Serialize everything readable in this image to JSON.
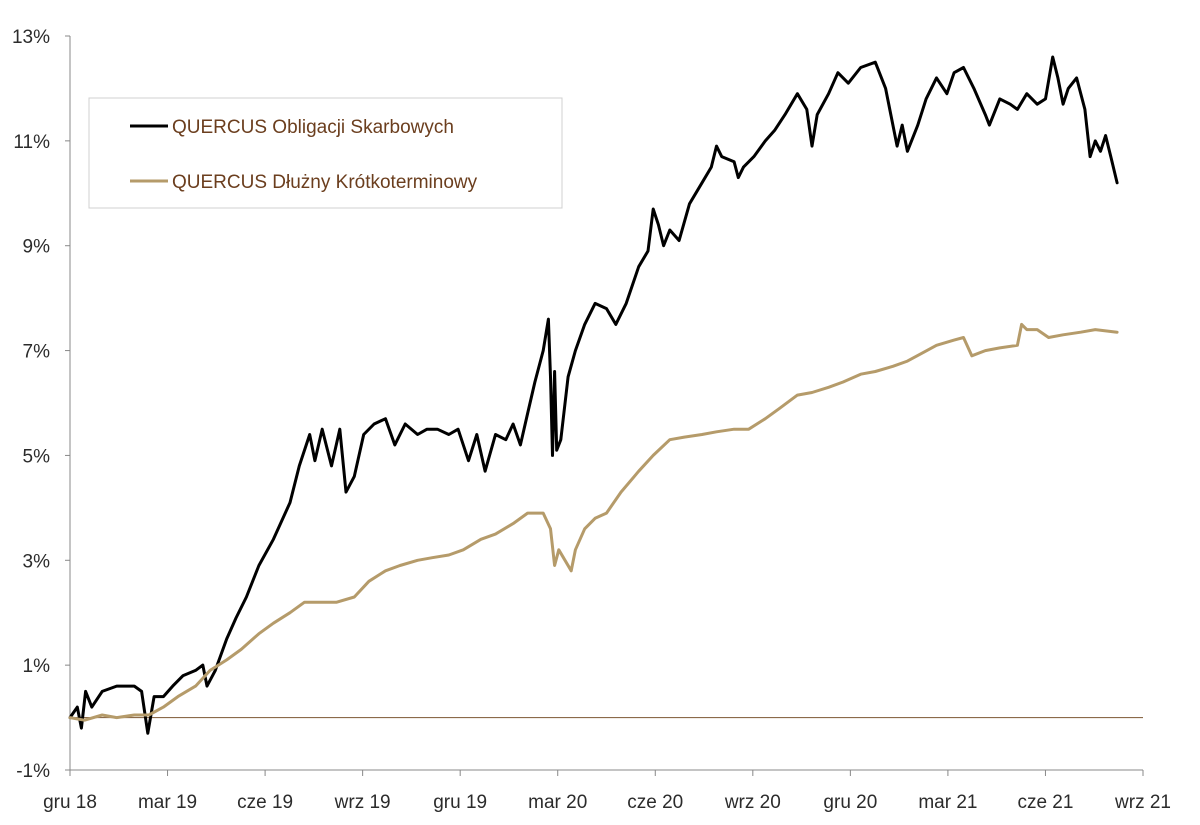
{
  "chart_data": {
    "type": "line",
    "title": "",
    "xlabel": "",
    "ylabel": "",
    "ylim": [
      -1,
      13
    ],
    "y_ticks": [
      -1,
      1,
      3,
      5,
      7,
      9,
      11,
      13
    ],
    "y_tick_labels": [
      "-1%",
      "1%",
      "3%",
      "5%",
      "7%",
      "9%",
      "11%",
      "13%"
    ],
    "x_ticks": [
      "gru 18",
      "mar 19",
      "cze 19",
      "wrz 19",
      "gru 19",
      "mar 20",
      "cze 20",
      "wrz 20",
      "gru 20",
      "mar 21",
      "cze 21",
      "wrz 21"
    ],
    "x_range": [
      "2018-12-01",
      "2021-09-30"
    ],
    "grid": false,
    "zero_line": true,
    "legend_position": "top-left",
    "series": [
      {
        "name": "QUERCUS Obligacji Skarbowych",
        "color": "#000000",
        "points": [
          [
            "2018-12-01",
            0.0
          ],
          [
            "2018-12-08",
            0.2
          ],
          [
            "2018-12-12",
            -0.2
          ],
          [
            "2018-12-16",
            0.5
          ],
          [
            "2018-12-22",
            0.2
          ],
          [
            "2019-01-01",
            0.5
          ],
          [
            "2019-01-15",
            0.6
          ],
          [
            "2019-02-01",
            0.6
          ],
          [
            "2019-02-08",
            0.5
          ],
          [
            "2019-02-14",
            -0.3
          ],
          [
            "2019-02-20",
            0.4
          ],
          [
            "2019-03-01",
            0.4
          ],
          [
            "2019-03-10",
            0.6
          ],
          [
            "2019-03-20",
            0.8
          ],
          [
            "2019-04-01",
            0.9
          ],
          [
            "2019-04-08",
            1.0
          ],
          [
            "2019-04-12",
            0.6
          ],
          [
            "2019-04-20",
            0.9
          ],
          [
            "2019-05-01",
            1.5
          ],
          [
            "2019-05-10",
            1.9
          ],
          [
            "2019-05-20",
            2.3
          ],
          [
            "2019-06-01",
            2.9
          ],
          [
            "2019-06-15",
            3.4
          ],
          [
            "2019-07-01",
            4.1
          ],
          [
            "2019-07-10",
            4.8
          ],
          [
            "2019-07-20",
            5.4
          ],
          [
            "2019-07-25",
            4.9
          ],
          [
            "2019-08-01",
            5.5
          ],
          [
            "2019-08-10",
            4.8
          ],
          [
            "2019-08-18",
            5.5
          ],
          [
            "2019-08-24",
            4.3
          ],
          [
            "2019-09-01",
            4.6
          ],
          [
            "2019-09-10",
            5.4
          ],
          [
            "2019-09-20",
            5.6
          ],
          [
            "2019-10-01",
            5.7
          ],
          [
            "2019-10-10",
            5.2
          ],
          [
            "2019-10-20",
            5.6
          ],
          [
            "2019-11-01",
            5.4
          ],
          [
            "2019-11-10",
            5.5
          ],
          [
            "2019-11-20",
            5.5
          ],
          [
            "2019-12-01",
            5.4
          ],
          [
            "2019-12-10",
            5.5
          ],
          [
            "2019-12-20",
            4.9
          ],
          [
            "2019-12-28",
            5.4
          ],
          [
            "2020-01-05",
            4.7
          ],
          [
            "2020-01-15",
            5.4
          ],
          [
            "2020-01-25",
            5.3
          ],
          [
            "2020-02-01",
            5.6
          ],
          [
            "2020-02-08",
            5.2
          ],
          [
            "2020-02-15",
            5.8
          ],
          [
            "2020-02-22",
            6.4
          ],
          [
            "2020-03-01",
            7.0
          ],
          [
            "2020-03-06",
            7.6
          ],
          [
            "2020-03-08",
            6.5
          ],
          [
            "2020-03-10",
            5.0
          ],
          [
            "2020-03-12",
            6.6
          ],
          [
            "2020-03-14",
            5.1
          ],
          [
            "2020-03-18",
            5.3
          ],
          [
            "2020-03-25",
            6.5
          ],
          [
            "2020-04-01",
            7.0
          ],
          [
            "2020-04-10",
            7.5
          ],
          [
            "2020-04-20",
            7.9
          ],
          [
            "2020-05-01",
            7.8
          ],
          [
            "2020-05-10",
            7.5
          ],
          [
            "2020-05-20",
            7.9
          ],
          [
            "2020-06-01",
            8.6
          ],
          [
            "2020-06-10",
            8.9
          ],
          [
            "2020-06-15",
            9.7
          ],
          [
            "2020-06-20",
            9.4
          ],
          [
            "2020-06-25",
            9.0
          ],
          [
            "2020-07-01",
            9.3
          ],
          [
            "2020-07-10",
            9.1
          ],
          [
            "2020-07-20",
            9.8
          ],
          [
            "2020-08-01",
            10.2
          ],
          [
            "2020-08-10",
            10.5
          ],
          [
            "2020-08-15",
            10.9
          ],
          [
            "2020-08-20",
            10.7
          ],
          [
            "2020-09-01",
            10.6
          ],
          [
            "2020-09-05",
            10.3
          ],
          [
            "2020-09-10",
            10.5
          ],
          [
            "2020-09-20",
            10.7
          ],
          [
            "2020-10-01",
            11.0
          ],
          [
            "2020-10-10",
            11.2
          ],
          [
            "2020-10-20",
            11.5
          ],
          [
            "2020-11-01",
            11.9
          ],
          [
            "2020-11-10",
            11.6
          ],
          [
            "2020-11-15",
            10.9
          ],
          [
            "2020-11-20",
            11.5
          ],
          [
            "2020-12-01",
            11.9
          ],
          [
            "2020-12-10",
            12.3
          ],
          [
            "2020-12-20",
            12.1
          ],
          [
            "2021-01-01",
            12.4
          ],
          [
            "2021-01-15",
            12.5
          ],
          [
            "2021-01-25",
            12.0
          ],
          [
            "2021-02-01",
            11.3
          ],
          [
            "2021-02-05",
            10.9
          ],
          [
            "2021-02-10",
            11.3
          ],
          [
            "2021-02-15",
            10.8
          ],
          [
            "2021-02-25",
            11.3
          ],
          [
            "2021-03-05",
            11.8
          ],
          [
            "2021-03-15",
            12.2
          ],
          [
            "2021-03-25",
            11.9
          ],
          [
            "2021-04-01",
            12.3
          ],
          [
            "2021-04-10",
            12.4
          ],
          [
            "2021-04-20",
            12.0
          ],
          [
            "2021-05-01",
            11.5
          ],
          [
            "2021-05-05",
            11.3
          ],
          [
            "2021-05-15",
            11.8
          ],
          [
            "2021-05-25",
            11.7
          ],
          [
            "2021-06-01",
            11.6
          ],
          [
            "2021-06-10",
            11.9
          ],
          [
            "2021-06-20",
            11.7
          ],
          [
            "2021-06-28",
            11.8
          ],
          [
            "2021-07-05",
            12.6
          ],
          [
            "2021-07-10",
            12.2
          ],
          [
            "2021-07-15",
            11.7
          ],
          [
            "2021-07-20",
            12.0
          ],
          [
            "2021-07-28",
            12.2
          ],
          [
            "2021-08-05",
            11.6
          ],
          [
            "2021-08-10",
            10.7
          ],
          [
            "2021-08-15",
            11.0
          ],
          [
            "2021-08-20",
            10.8
          ],
          [
            "2021-08-25",
            11.1
          ],
          [
            "2021-08-30",
            10.7
          ],
          [
            "2021-09-05",
            10.2
          ]
        ]
      },
      {
        "name": "QUERCUS Dłużny Krótkoterminowy",
        "color": "#b59b6a",
        "points": [
          [
            "2018-12-01",
            0.0
          ],
          [
            "2018-12-15",
            -0.05
          ],
          [
            "2019-01-01",
            0.05
          ],
          [
            "2019-01-15",
            0.0
          ],
          [
            "2019-02-01",
            0.05
          ],
          [
            "2019-02-15",
            0.05
          ],
          [
            "2019-03-01",
            0.2
          ],
          [
            "2019-03-15",
            0.4
          ],
          [
            "2019-04-01",
            0.6
          ],
          [
            "2019-04-15",
            0.9
          ],
          [
            "2019-05-01",
            1.1
          ],
          [
            "2019-05-15",
            1.3
          ],
          [
            "2019-06-01",
            1.6
          ],
          [
            "2019-06-15",
            1.8
          ],
          [
            "2019-07-01",
            2.0
          ],
          [
            "2019-07-15",
            2.2
          ],
          [
            "2019-08-01",
            2.2
          ],
          [
            "2019-08-15",
            2.2
          ],
          [
            "2019-09-01",
            2.3
          ],
          [
            "2019-09-15",
            2.6
          ],
          [
            "2019-10-01",
            2.8
          ],
          [
            "2019-10-15",
            2.9
          ],
          [
            "2019-11-01",
            3.0
          ],
          [
            "2019-11-15",
            3.05
          ],
          [
            "2019-12-01",
            3.1
          ],
          [
            "2019-12-15",
            3.2
          ],
          [
            "2020-01-01",
            3.4
          ],
          [
            "2020-01-15",
            3.5
          ],
          [
            "2020-02-01",
            3.7
          ],
          [
            "2020-02-15",
            3.9
          ],
          [
            "2020-03-01",
            3.9
          ],
          [
            "2020-03-08",
            3.6
          ],
          [
            "2020-03-12",
            2.9
          ],
          [
            "2020-03-16",
            3.2
          ],
          [
            "2020-03-22",
            3.0
          ],
          [
            "2020-03-28",
            2.8
          ],
          [
            "2020-04-01",
            3.2
          ],
          [
            "2020-04-10",
            3.6
          ],
          [
            "2020-04-20",
            3.8
          ],
          [
            "2020-05-01",
            3.9
          ],
          [
            "2020-05-15",
            4.3
          ],
          [
            "2020-06-01",
            4.7
          ],
          [
            "2020-06-15",
            5.0
          ],
          [
            "2020-07-01",
            5.3
          ],
          [
            "2020-07-15",
            5.35
          ],
          [
            "2020-08-01",
            5.4
          ],
          [
            "2020-08-15",
            5.45
          ],
          [
            "2020-09-01",
            5.5
          ],
          [
            "2020-09-15",
            5.5
          ],
          [
            "2020-10-01",
            5.7
          ],
          [
            "2020-10-15",
            5.9
          ],
          [
            "2020-11-01",
            6.15
          ],
          [
            "2020-11-15",
            6.2
          ],
          [
            "2020-12-01",
            6.3
          ],
          [
            "2020-12-15",
            6.4
          ],
          [
            "2021-01-01",
            6.55
          ],
          [
            "2021-01-15",
            6.6
          ],
          [
            "2021-02-01",
            6.7
          ],
          [
            "2021-02-15",
            6.8
          ],
          [
            "2021-03-01",
            6.95
          ],
          [
            "2021-03-15",
            7.1
          ],
          [
            "2021-04-01",
            7.2
          ],
          [
            "2021-04-10",
            7.25
          ],
          [
            "2021-04-18",
            6.9
          ],
          [
            "2021-05-01",
            7.0
          ],
          [
            "2021-05-15",
            7.05
          ],
          [
            "2021-06-01",
            7.1
          ],
          [
            "2021-06-05",
            7.5
          ],
          [
            "2021-06-10",
            7.4
          ],
          [
            "2021-06-20",
            7.4
          ],
          [
            "2021-07-01",
            7.25
          ],
          [
            "2021-07-15",
            7.3
          ],
          [
            "2021-08-01",
            7.35
          ],
          [
            "2021-08-15",
            7.4
          ],
          [
            "2021-09-05",
            7.35
          ]
        ]
      }
    ]
  }
}
